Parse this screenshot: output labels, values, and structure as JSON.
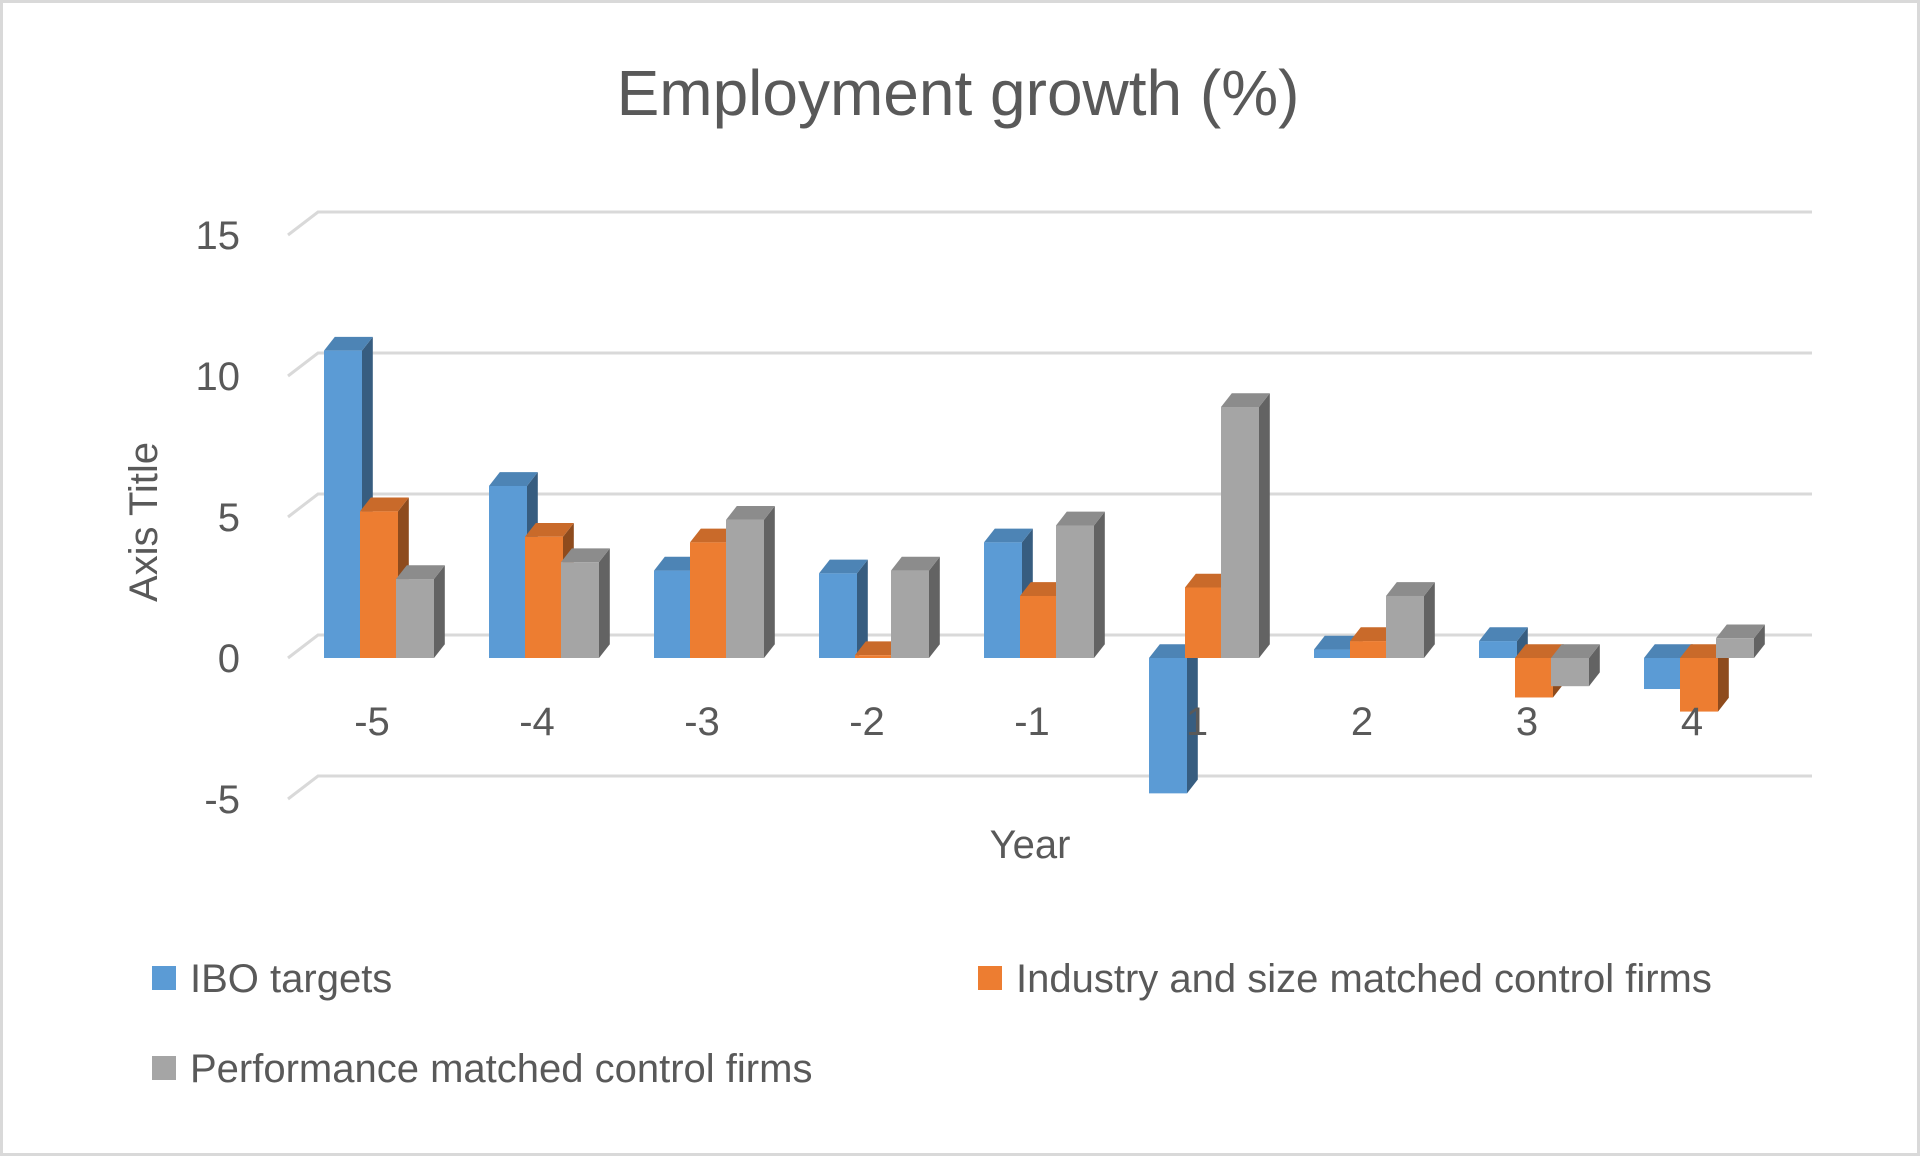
{
  "chart_data": {
    "type": "bar",
    "title": "Employment growth (%)",
    "xlabel": "Year",
    "ylabel": "Axis Title",
    "categories": [
      "-5",
      "-4",
      "-3",
      "-2",
      "-1",
      "1",
      "2",
      "3",
      "4"
    ],
    "ylim": [
      -5,
      15
    ],
    "yticks": [
      -5,
      0,
      5,
      10,
      15
    ],
    "grid": true,
    "legend_position": "bottom",
    "series": [
      {
        "name": "IBO targets",
        "color": "#5b9bd5",
        "values": [
          10.9,
          6.1,
          3.1,
          3.0,
          4.1,
          -4.8,
          0.3,
          0.6,
          -1.1
        ]
      },
      {
        "name": "Industry and size matched control firms",
        "color": "#ed7d31",
        "values": [
          5.2,
          4.3,
          4.1,
          0.1,
          2.2,
          2.5,
          0.6,
          -1.4,
          -1.9
        ]
      },
      {
        "name": "Performance matched control firms",
        "color": "#a5a5a5",
        "values": [
          2.8,
          3.4,
          4.9,
          3.1,
          4.7,
          8.9,
          2.2,
          -1.0,
          0.7
        ]
      }
    ]
  }
}
